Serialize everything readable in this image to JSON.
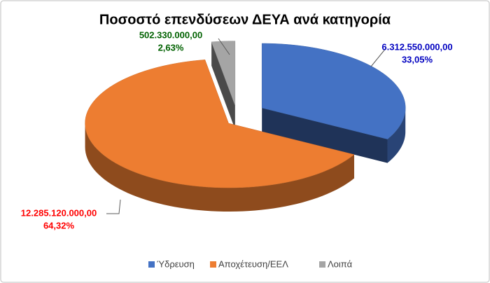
{
  "chart_data": {
    "type": "pie3d",
    "title": "Ποσοστό επενδύσεων ΔΕΥΑ ανά κατηγορία",
    "categories": [
      "Ύδρευση",
      "Αποχέτευση/ΕΕΛ",
      "Λοιπά"
    ],
    "values": [
      6312550000,
      12285120000,
      502330000
    ],
    "value_labels": [
      "6.312.550.000,00",
      "12.285.120.000,00",
      "502.330.000,00"
    ],
    "percentages": [
      33.05,
      64.32,
      2.63
    ],
    "percentage_labels": [
      "33,05%",
      "64,32%",
      "2,63%"
    ],
    "colors": [
      "#4472c4",
      "#ed7d31",
      "#a5a5a5"
    ],
    "label_colors": [
      "#0000c0",
      "#ff0000",
      "#006100"
    ],
    "legend": "bottom"
  }
}
